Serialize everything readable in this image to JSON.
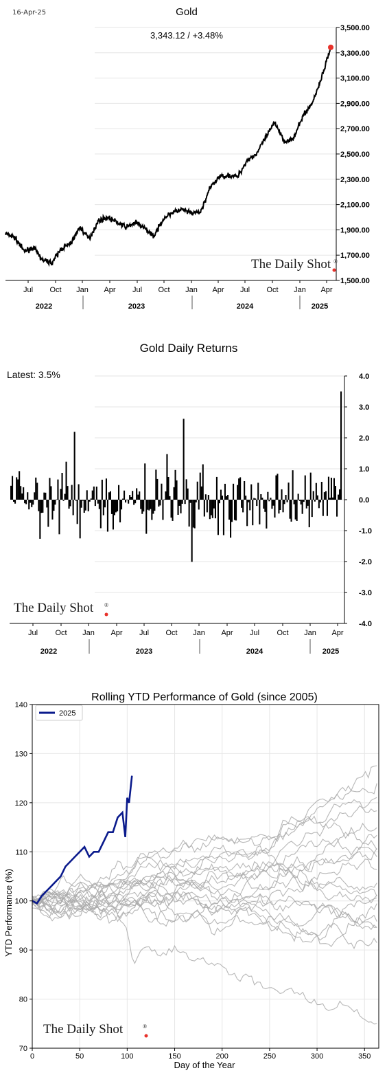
{
  "colors": {
    "line": "#000000",
    "brand_dot": "#e8322b",
    "series_2025": "#0a1a8c",
    "history": "#aaaaaa",
    "grid": "#e6e6e6"
  },
  "brand": {
    "text": "The Daily Shot",
    "mark": "®"
  },
  "chart_data": [
    {
      "type": "line",
      "date_label": "16-Apr-25",
      "title": "Gold",
      "subtitle": "3,343.12  /  +3.48%",
      "y_ticks": [
        "3,500.00",
        "3,300.00",
        "3,100.00",
        "2,900.00",
        "2,700.00",
        "2,500.00",
        "2,300.00",
        "2,100.00",
        "1,900.00",
        "1,700.00",
        "1,500.00"
      ],
      "ylim": [
        1500,
        3500
      ],
      "x_month_ticks": [
        "Jul",
        "Oct",
        "Jan",
        "Apr",
        "Jul",
        "Oct",
        "Jan",
        "Apr",
        "Jul",
        "Oct",
        "Jan",
        "Apr"
      ],
      "x_year_labels": [
        "2022",
        "2023",
        "2024",
        "2025"
      ],
      "series": [
        {
          "x": [
            "2022-05",
            "2022-06",
            "2022-07",
            "2022-08",
            "2022-09",
            "2022-10",
            "2022-11",
            "2022-12",
            "2023-01",
            "2023-02",
            "2023-03",
            "2023-04",
            "2023-05",
            "2023-06",
            "2023-07",
            "2023-08",
            "2023-09",
            "2023-10",
            "2023-11",
            "2023-12",
            "2024-01",
            "2024-02",
            "2024-03",
            "2024-04",
            "2024-05",
            "2024-06",
            "2024-07",
            "2024-08",
            "2024-09",
            "2024-10",
            "2024-11",
            "2024-12",
            "2025-01",
            "2025-02",
            "2025-03",
            "2025-04"
          ],
          "values": [
            1870,
            1840,
            1730,
            1760,
            1660,
            1640,
            1750,
            1790,
            1920,
            1830,
            1970,
            2000,
            1960,
            1920,
            1960,
            1910,
            1850,
            1990,
            2040,
            2060,
            2030,
            2040,
            2230,
            2320,
            2330,
            2320,
            2450,
            2500,
            2630,
            2750,
            2600,
            2620,
            2800,
            2900,
            3100,
            3343.12
          ]
        }
      ]
    },
    {
      "type": "bar",
      "title": "Gold Daily Returns",
      "latest_label": "Latest:  3.5%",
      "y_ticks": [
        "4.0",
        "3.0",
        "2.0",
        "1.0",
        "0.0",
        "-1.0",
        "-2.0",
        "-3.0",
        "-4.0"
      ],
      "ylim": [
        -4,
        4
      ],
      "x_month_ticks": [
        "Jul",
        "Oct",
        "Jan",
        "Apr",
        "Jul",
        "Oct",
        "Jan",
        "Apr",
        "Jul",
        "Oct",
        "Jan",
        "Apr"
      ],
      "x_year_labels": [
        "2022",
        "2023",
        "2024",
        "2025"
      ],
      "latest_value": 3.5
    },
    {
      "type": "line",
      "title": "Rolling YTD Performance of Gold (since 2005)",
      "xlabel": "Day of the Year",
      "ylabel": "YTD Performance (%)",
      "xlim": [
        0,
        365
      ],
      "ylim": [
        70,
        140
      ],
      "x_ticks": [
        "0",
        "50",
        "100",
        "150",
        "200",
        "250",
        "300",
        "350"
      ],
      "y_ticks": [
        "140",
        "130",
        "120",
        "110",
        "100",
        "90",
        "80",
        "70"
      ],
      "legend": "top-left",
      "series": [
        {
          "name": "2025",
          "x": [
            0,
            5,
            10,
            15,
            20,
            25,
            30,
            35,
            40,
            45,
            50,
            55,
            60,
            65,
            70,
            75,
            80,
            85,
            90,
            95,
            98,
            100,
            102,
            105
          ],
          "values": [
            100,
            99.5,
            101,
            102,
            103,
            104,
            105,
            107,
            108,
            109,
            110,
            111,
            109,
            110,
            110,
            112,
            114,
            114,
            117,
            118,
            113,
            121,
            120,
            125.5
          ]
        }
      ]
    }
  ]
}
